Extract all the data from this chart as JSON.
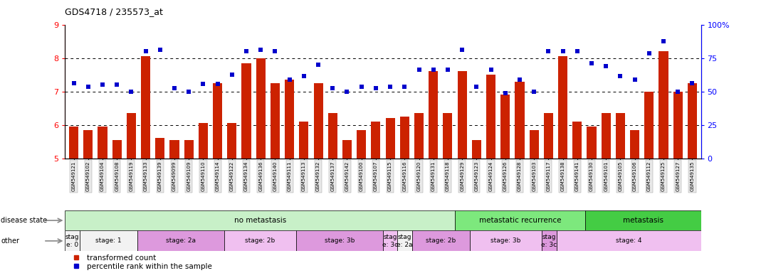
{
  "title": "GDS4718 / 235573_at",
  "samples": [
    "GSM549121",
    "GSM549102",
    "GSM549104",
    "GSM549108",
    "GSM549119",
    "GSM549133",
    "GSM549139",
    "GSM549099",
    "GSM549109",
    "GSM549110",
    "GSM549114",
    "GSM549122",
    "GSM549134",
    "GSM549136",
    "GSM549140",
    "GSM549111",
    "GSM549113",
    "GSM549132",
    "GSM549137",
    "GSM549142",
    "GSM549100",
    "GSM549107",
    "GSM549115",
    "GSM549116",
    "GSM549120",
    "GSM549131",
    "GSM549118",
    "GSM549129",
    "GSM549123",
    "GSM549124",
    "GSM549126",
    "GSM549128",
    "GSM549103",
    "GSM549117",
    "GSM549138",
    "GSM549141",
    "GSM549130",
    "GSM549101",
    "GSM549105",
    "GSM549106",
    "GSM549112",
    "GSM549125",
    "GSM549127",
    "GSM549135"
  ],
  "bar_values": [
    5.95,
    5.85,
    5.95,
    5.55,
    6.35,
    8.05,
    5.6,
    5.55,
    5.55,
    6.05,
    7.25,
    6.05,
    7.85,
    8.0,
    7.25,
    7.35,
    6.1,
    7.25,
    6.35,
    5.55,
    5.85,
    6.1,
    6.2,
    6.25,
    6.35,
    7.6,
    6.35,
    7.6,
    5.55,
    7.5,
    6.9,
    7.3,
    5.85,
    6.35,
    8.05,
    6.1,
    5.95,
    6.35,
    6.35,
    5.85,
    7.0,
    8.2,
    7.0,
    7.25
  ],
  "dot_values_left": [
    7.25,
    7.15,
    7.2,
    7.2,
    7.0,
    8.2,
    8.25,
    7.1,
    7.0,
    7.22,
    7.22,
    7.5,
    8.2,
    8.25,
    8.2,
    7.35,
    7.45,
    7.8,
    7.1,
    7.0,
    7.15,
    7.1,
    7.15,
    7.15,
    7.65,
    7.65,
    7.65,
    8.25,
    7.15,
    7.65,
    6.95,
    7.35,
    7.0,
    8.2,
    8.2,
    8.2,
    7.85,
    7.75,
    7.45,
    7.35,
    8.15,
    8.5,
    7.0,
    7.25
  ],
  "disease_state_groups": [
    {
      "label": "no metastasis",
      "start": 0,
      "end": 27,
      "color": "#c8f0c8"
    },
    {
      "label": "metastatic recurrence",
      "start": 27,
      "end": 36,
      "color": "#7de87d"
    },
    {
      "label": "metastasis",
      "start": 36,
      "end": 44,
      "color": "#44cc44"
    }
  ],
  "stage_groups": [
    {
      "label": "stag\ne: 0",
      "start": 0,
      "end": 1,
      "color": "#f2f2f2"
    },
    {
      "label": "stage: 1",
      "start": 1,
      "end": 5,
      "color": "#f2f2f2"
    },
    {
      "label": "stage: 2a",
      "start": 5,
      "end": 11,
      "color": "#dd99dd"
    },
    {
      "label": "stage: 2b",
      "start": 11,
      "end": 16,
      "color": "#f0c0f0"
    },
    {
      "label": "stage: 3b",
      "start": 16,
      "end": 22,
      "color": "#dd99dd"
    },
    {
      "label": "stag\ne: 3c",
      "start": 22,
      "end": 23,
      "color": "#f0c0f0"
    },
    {
      "label": "stag\ne: 2a",
      "start": 23,
      "end": 24,
      "color": "#f2f2f2"
    },
    {
      "label": "stage: 2b",
      "start": 24,
      "end": 28,
      "color": "#dd99dd"
    },
    {
      "label": "stage: 3b",
      "start": 28,
      "end": 33,
      "color": "#f0c0f0"
    },
    {
      "label": "stag\ne: 3c",
      "start": 33,
      "end": 34,
      "color": "#dd99dd"
    },
    {
      "label": "stage: 4",
      "start": 34,
      "end": 44,
      "color": "#f0c0f0"
    }
  ],
  "bar_color": "#cc2200",
  "dot_color": "#0000cc",
  "ylim_left": [
    5,
    9
  ],
  "ylim_right": [
    0,
    100
  ],
  "yticks_left": [
    5,
    6,
    7,
    8,
    9
  ],
  "yticks_right": [
    0,
    25,
    50,
    75,
    100
  ],
  "gridlines_at": [
    6,
    7,
    8
  ]
}
